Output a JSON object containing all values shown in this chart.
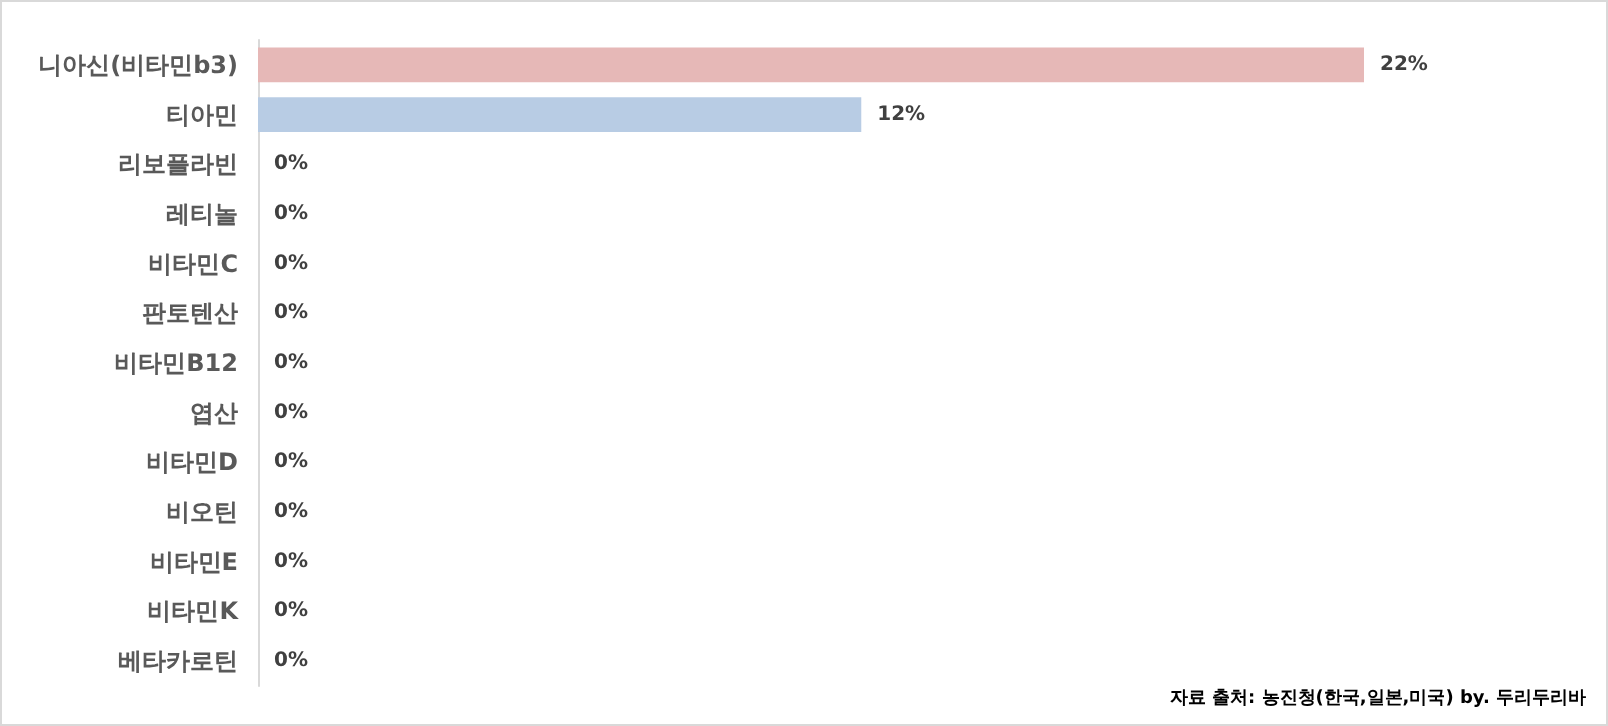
{
  "chart_data": {
    "type": "bar",
    "orientation": "horizontal",
    "categories": [
      "니아신(비타민b3)",
      "티아민",
      "리보플라빈",
      "레티놀",
      "비타민C",
      "판토텐산",
      "비타민B12",
      "엽산",
      "비타민D",
      "비오틴",
      "비타민E",
      "비타민K",
      "베타카로틴"
    ],
    "values": [
      22,
      12,
      0,
      0,
      0,
      0,
      0,
      0,
      0,
      0,
      0,
      0,
      0
    ],
    "colors": [
      "#e6b8b7",
      "#b8cce4",
      "#b8cce4",
      "#b8cce4",
      "#b8cce4",
      "#b8cce4",
      "#b8cce4",
      "#b8cce4",
      "#b8cce4",
      "#b8cce4",
      "#b8cce4",
      "#b8cce4",
      "#b8cce4"
    ],
    "value_labels": [
      "22%",
      "12%",
      "0%",
      "0%",
      "0%",
      "0%",
      "0%",
      "0%",
      "0%",
      "0%",
      "0%",
      "0%",
      "0%"
    ],
    "annotations": [
      "자료 출처: 농진청(한국,일본,미국) by. 두리두리바"
    ]
  }
}
